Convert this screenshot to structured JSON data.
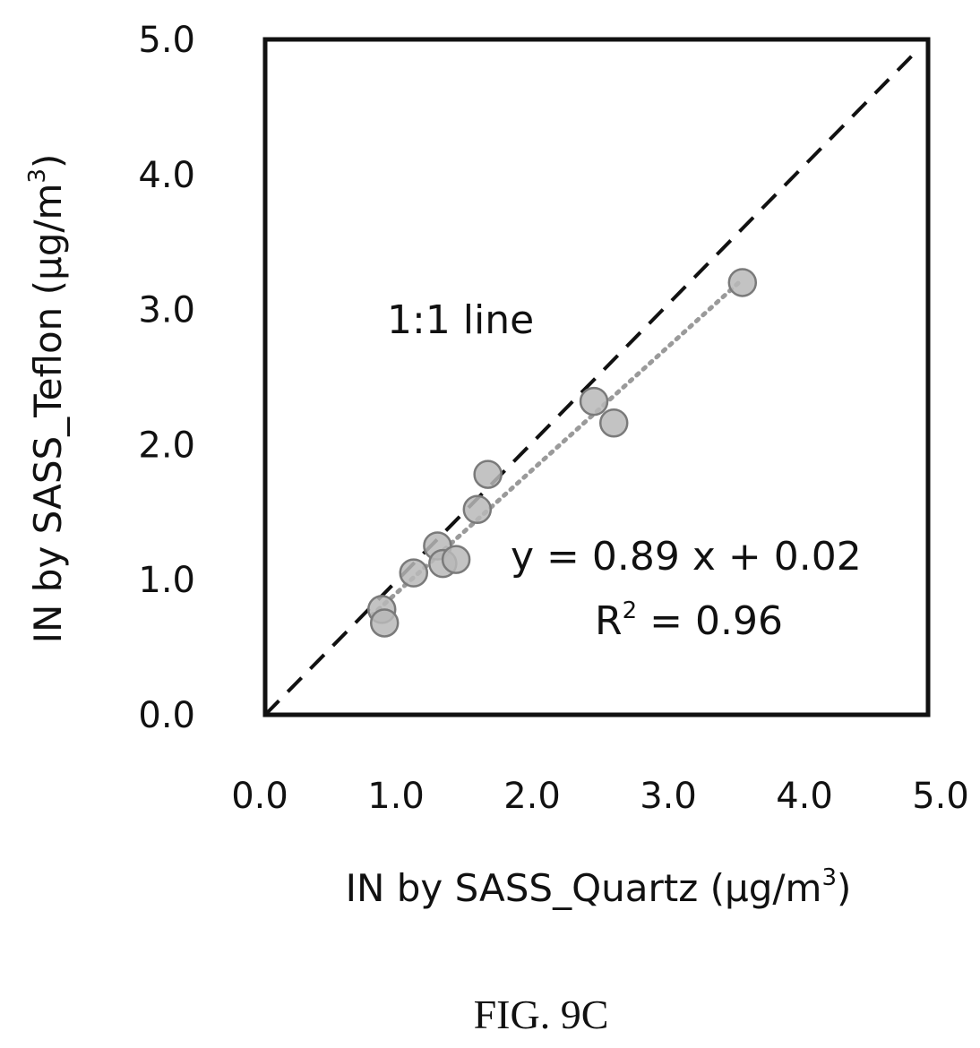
{
  "chart_data": {
    "type": "scatter",
    "title": "",
    "xlabel": "IN by SASS_Quartz (μg/m",
    "xlabel_sup": "3",
    "xlabel_end": ")",
    "ylabel": "IN by SASS_Teflon (μg/m",
    "ylabel_sup": "3",
    "ylabel_end": ")",
    "xlim": [
      0,
      5
    ],
    "ylim": [
      0,
      5
    ],
    "x_ticks": [
      "0.0",
      "1.0",
      "2.0",
      "3.0",
      "4.0",
      "5.0"
    ],
    "y_ticks": [
      "0.0",
      "1.0",
      "2.0",
      "3.0",
      "4.0",
      "5.0"
    ],
    "grid": false,
    "points": [
      {
        "x": 0.88,
        "y": 0.78
      },
      {
        "x": 0.9,
        "y": 0.68
      },
      {
        "x": 1.12,
        "y": 1.05
      },
      {
        "x": 1.3,
        "y": 1.25
      },
      {
        "x": 1.34,
        "y": 1.12
      },
      {
        "x": 1.44,
        "y": 1.15
      },
      {
        "x": 1.6,
        "y": 1.52
      },
      {
        "x": 1.68,
        "y": 1.78
      },
      {
        "x": 2.48,
        "y": 2.32
      },
      {
        "x": 2.63,
        "y": 2.16
      },
      {
        "x": 3.6,
        "y": 3.2
      }
    ],
    "reference_line": {
      "label": "1:1 line",
      "slope": 1,
      "intercept": 0,
      "from": 0,
      "to": 4.9
    },
    "trendline": {
      "slope": 0.89,
      "intercept": 0.02,
      "from": 0.8,
      "to": 3.6
    },
    "equation": "y = 0.89 x + 0.02",
    "r2_prefix": "R",
    "r2_sup": "2",
    "r2_value": " = 0.96",
    "colors": {
      "marker_fill": "#b8b8b8",
      "marker_stroke": "#7a7a7a",
      "trend": "#9a9a9a",
      "ref": "#111111"
    }
  },
  "caption": "FIG. 9C"
}
